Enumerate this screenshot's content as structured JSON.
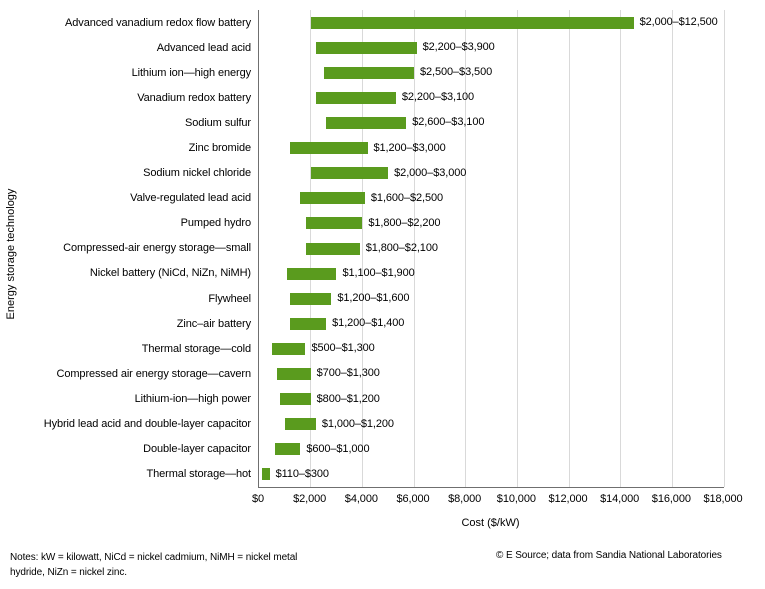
{
  "chart_data": {
    "type": "bar",
    "orientation": "horizontal",
    "title": "",
    "xlabel": "Cost ($/kW)",
    "ylabel": "Energy storage technology",
    "xlim": [
      0,
      18000
    ],
    "grid": "vertical",
    "legend": "none",
    "bar_color": "#5A9B1E",
    "gridline_color": "#D9D9D9",
    "axis_color": "#6F6F6F",
    "x_ticks": [
      "$0",
      "$2,000",
      "$4,000",
      "$6,000",
      "$8,000",
      "$10,000",
      "$12,000",
      "$14,000",
      "$16,000",
      "$18,000"
    ],
    "x_tick_values": [
      0,
      2000,
      4000,
      6000,
      8000,
      10000,
      12000,
      14000,
      16000,
      18000
    ],
    "bars": [
      {
        "label": "Advanced vanadium redox flow battery",
        "min": 2000,
        "max": 12500,
        "value_label": "$2,000–$12,500"
      },
      {
        "label": "Advanced lead acid",
        "min": 2200,
        "max": 3900,
        "value_label": "$2,200–$3,900"
      },
      {
        "label": "Lithium ion—high energy",
        "min": 2500,
        "max": 3500,
        "value_label": "$2,500–$3,500"
      },
      {
        "label": "Vanadium redox battery",
        "min": 2200,
        "max": 3100,
        "value_label": "$2,200–$3,100"
      },
      {
        "label": "Sodium sulfur",
        "min": 2600,
        "max": 3100,
        "value_label": "$2,600–$3,100"
      },
      {
        "label": "Zinc bromide",
        "min": 1200,
        "max": 3000,
        "value_label": "$1,200–$3,000"
      },
      {
        "label": "Sodium nickel chloride",
        "min": 2000,
        "max": 3000,
        "value_label": "$2,000–$3,000"
      },
      {
        "label": "Valve-regulated lead acid",
        "min": 1600,
        "max": 2500,
        "value_label": "$1,600–$2,500"
      },
      {
        "label": "Pumped hydro",
        "min": 1800,
        "max": 2200,
        "value_label": "$1,800–$2,200"
      },
      {
        "label": "Compressed-air energy storage—small",
        "min": 1800,
        "max": 2100,
        "value_label": "$1,800–$2,100"
      },
      {
        "label": "Nickel battery (NiCd, NiZn, NiMH)",
        "min": 1100,
        "max": 1900,
        "value_label": "$1,100–$1,900"
      },
      {
        "label": "Flywheel",
        "min": 1200,
        "max": 1600,
        "value_label": "$1,200–$1,600"
      },
      {
        "label": "Zinc–air battery",
        "min": 1200,
        "max": 1400,
        "value_label": "$1,200–$1,400"
      },
      {
        "label": "Thermal storage—cold",
        "min": 500,
        "max": 1300,
        "value_label": "$500–$1,300"
      },
      {
        "label": "Compressed air energy storage—cavern",
        "min": 700,
        "max": 1300,
        "value_label": "$700–$1,300"
      },
      {
        "label": "Lithium-ion—high power",
        "min": 800,
        "max": 1200,
        "value_label": "$800–$1,200"
      },
      {
        "label": "Hybrid lead acid and double-layer capacitor",
        "min": 1000,
        "max": 1200,
        "value_label": "$1,000–$1,200"
      },
      {
        "label": "Double-layer capacitor",
        "min": 600,
        "max": 1000,
        "value_label": "$600–$1,000"
      },
      {
        "label": "Thermal storage—hot",
        "min": 110,
        "max": 300,
        "value_label": "$110–$300"
      }
    ]
  },
  "footer": {
    "notes_line1": "Notes: kW = kilowatt, NiCd = nickel cadmium, NiMH = nickel metal",
    "notes_line2": "hydride, NiZn = nickel zinc.",
    "credit": "© E Source; data from Sandia National Laboratories"
  }
}
